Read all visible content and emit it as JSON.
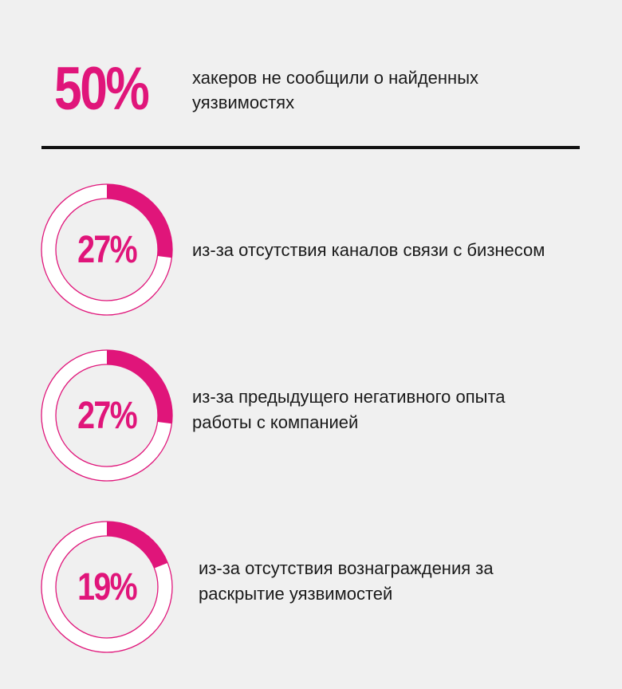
{
  "headline": {
    "value": "50%",
    "text": "хакеров не сообщили о найденных уязвимостях"
  },
  "chart_data": {
    "type": "donut",
    "accent_color": "#e0157a",
    "ring_outline_color": "#e0157a",
    "items": [
      {
        "label": "27%",
        "value": 27,
        "text": "из-за отсутствия каналов связи с бизнесом"
      },
      {
        "label": "27%",
        "value": 27,
        "text": "из-за предыдущего негативного опыта работы с компанией"
      },
      {
        "label": "19%",
        "value": 19,
        "text": "из-за отсутствия вознаграждения за раскрытие уязвимостей"
      }
    ]
  }
}
